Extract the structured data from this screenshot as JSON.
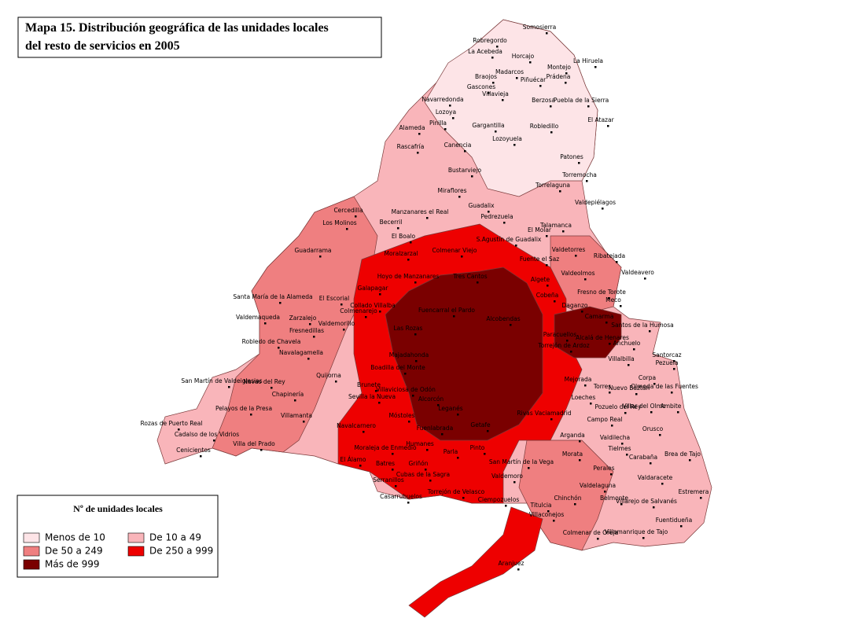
{
  "header": {
    "title_lines": [
      "Mapa 15. Distribución geográfica de las unidades locales",
      "del resto de servicios en 2005"
    ]
  },
  "legend": {
    "title": "Nº de unidades locales",
    "items": [
      {
        "label": "Menos de 10",
        "color": "#fde4e7"
      },
      {
        "label": "De 10 a 49",
        "color": "#f9b5ba"
      },
      {
        "label": "De 50 a 249",
        "color": "#ef7f80"
      },
      {
        "label": "De 250 a 999",
        "color": "#ee0000"
      },
      {
        "label": "Más de 999",
        "color": "#7a0000"
      }
    ]
  },
  "municipalities": [
    "Somosierra",
    "Robregordo",
    "La Acebeda",
    "Horcajo",
    "La Hiruela",
    "Montejo",
    "Madarcos",
    "Prádena",
    "Braojos",
    "Piñuécar",
    "Gascones",
    "Puebla de la Sierra",
    "Villavieja",
    "Navarredonda",
    "Berzosa",
    "Lozoya",
    "Pinilla",
    "Gargantilla",
    "El Atazar",
    "Robledillo",
    "Alameda",
    "Lozoyuela",
    "Rascafría",
    "Canencia",
    "Patones",
    "Bustarviejo",
    "Torremocha",
    "Miraflores",
    "Torrelaguna",
    "Guadalix",
    "Valdepiélagos",
    "Manzanares el Real",
    "Pedrezuela",
    "Cercedilla",
    "Los Molinos",
    "Becerril",
    "El Molar",
    "Guadarrama",
    "El Boalo",
    "Colmenar Viejo",
    "Ribatejada",
    "Moralzarzal",
    "Valdeavero",
    "Algete",
    "Fuencarral el Pardo",
    "Cobeña",
    "Daganzo",
    "Meco",
    "Alcobendas",
    "Torrejón de Ardoz",
    "Alcalá de Henares",
    "Santos de la Humosa",
    "Paracuellos",
    "Collado Villalba",
    "El Escorial",
    "Galapagar",
    "Las Rozas",
    "Majadahonda",
    "Boadilla del Monte",
    "Villaviciosa de Odón",
    "Móstoles",
    "Alcorcón",
    "Leganés",
    "Getafe",
    "Fuenlabrada",
    "Parla",
    "Pinto",
    "Valdemoro",
    "Arganda",
    "Rivas Vaciamadrid",
    "Mejorada",
    "Loeches",
    "Torres",
    "Villalbilla",
    "Pezuela",
    "Campo Real",
    "Tielmes",
    "Carabaña",
    "Perales",
    "Morata",
    "Chinchón",
    "Villaconejos",
    "Colmenar de Oreja",
    "Villarejo de Salvanés",
    "Fuentidueña",
    "Estremera",
    "Belmonte",
    "Ciempozuelos",
    "Aranjuez",
    "Titulcia",
    "San Martín de la Vega",
    "Torrejón de Velasco",
    "Griñón",
    "Serranillos",
    "Casarrubuelos",
    "El Álamo",
    "Navalcarnero",
    "Villamanta",
    "Villa del Prado",
    "Cenicientos",
    "Rozas de Puerto Real",
    "Cadalso de los Vidrios",
    "Pelayos de la Presa",
    "San Martín de Valdeiglesias",
    "Navas del Rey",
    "Chapinería",
    "Robledo de Chavela",
    "Valdemaqueda",
    "Santa María de la Alameda",
    "Zarzalejo",
    "Fresnedillas",
    "Valdemorillo",
    "Colmenarejo",
    "Navalagamella",
    "Quijorna",
    "Brunete",
    "Sevilla la Nueva",
    "Humanes",
    "Moraleja de Enmedio",
    "Batres",
    "Cubas de la Sagra",
    "Hoyo de Manzanares",
    "Tres Cantos",
    "S.Agustín de Guadalix",
    "Fuente el Saz",
    "Valdetorres",
    "Talamanca",
    "Valdeolmos",
    "Fresno de Torote",
    "Camarma",
    "Anchuelo",
    "Santorcaz",
    "Corpa",
    "Olmeda de las Fuentes",
    "Nuevo Baztán",
    "Ambite",
    "Pozuelo del Rey",
    "Villar del Olmo",
    "Orusco",
    "Valdilecha",
    "Brea de Tajo",
    "Valdaracete",
    "Valdelaguna",
    "Villamanrique de Tajo"
  ]
}
